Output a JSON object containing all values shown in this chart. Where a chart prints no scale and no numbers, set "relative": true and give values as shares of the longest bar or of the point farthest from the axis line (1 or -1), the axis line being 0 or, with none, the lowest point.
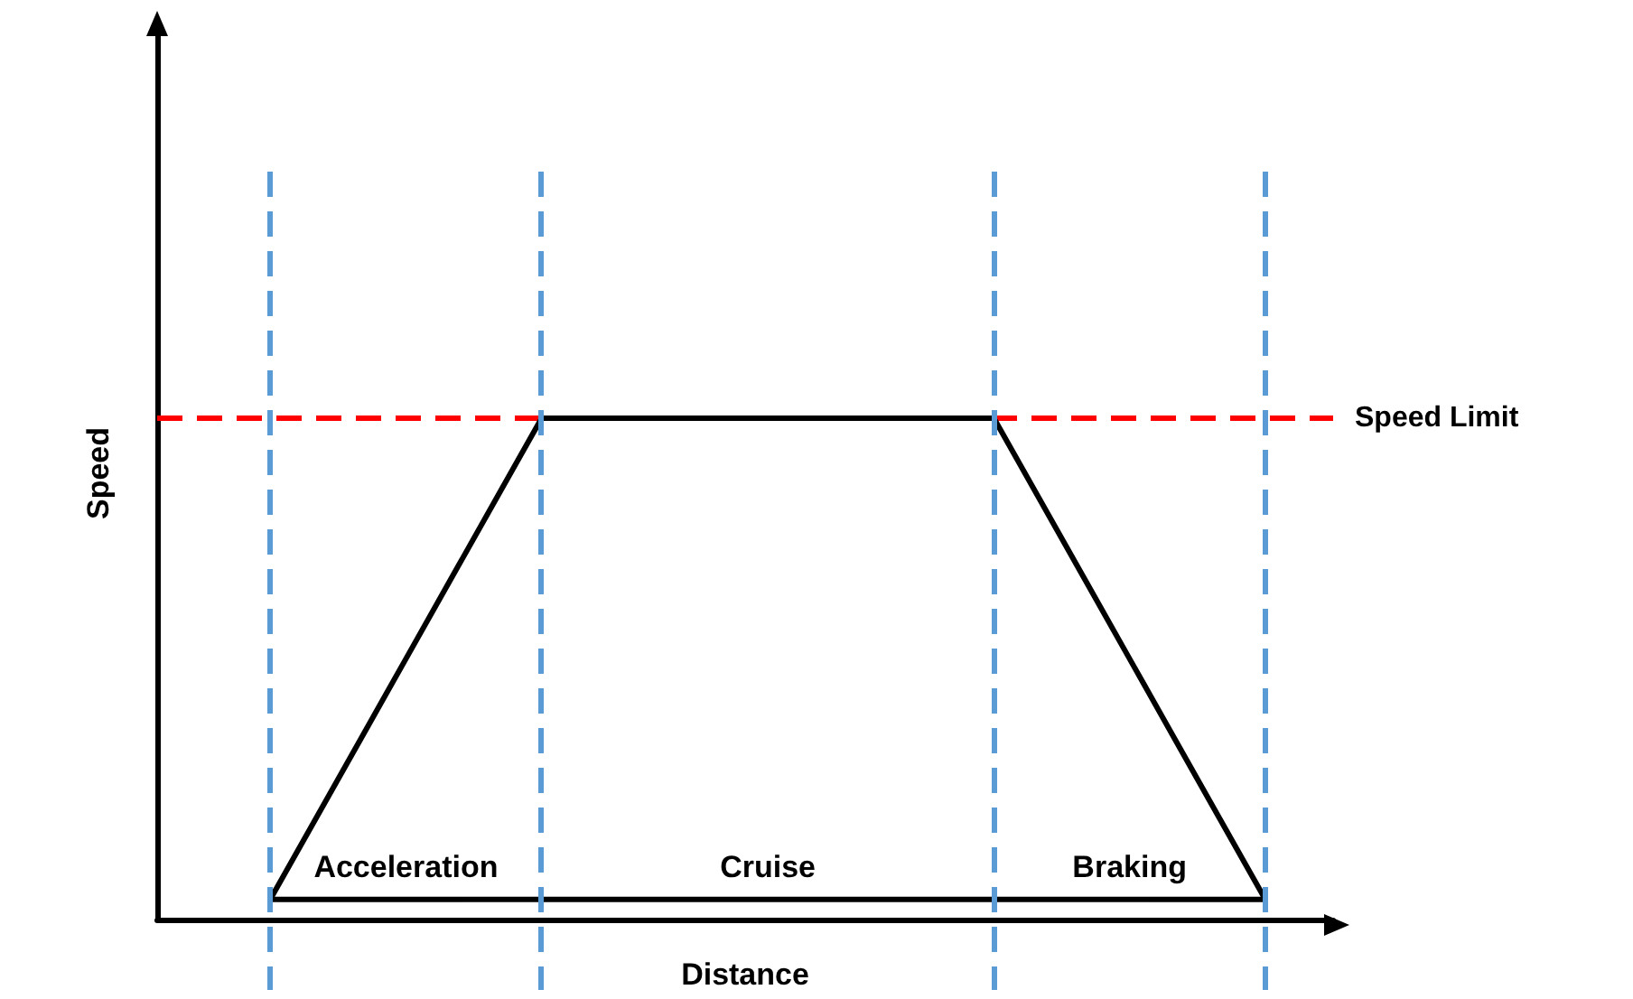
{
  "chart_data": {
    "type": "line",
    "xlabel": "Distance",
    "ylabel": "Speed",
    "relative": true,
    "marker": "none",
    "line_style": "solid",
    "categories": [
      null,
      null,
      null,
      null,
      null,
      null,
      null,
      null,
      null,
      null,
      null,
      null,
      null,
      null,
      null,
      null,
      null,
      null,
      null,
      null,
      null,
      null,
      null,
      null,
      null,
      null
    ],
    "series": [
      {
        "color": "#000000",
        "values": [
          null,
          null,
          0.04,
          0.2,
          0.36,
          0.52,
          0.68,
          0.84,
          1,
          1,
          1,
          1,
          1,
          1,
          1,
          1,
          1,
          1,
          1,
          0.84,
          0.68,
          0.52,
          0.36,
          0.2,
          0.04,
          null
        ]
      },
      {
        "color": "#000000",
        "values": [
          null,
          null,
          0.04,
          0.04,
          0.04,
          0.04,
          0.04,
          0.04,
          0.04,
          0.04,
          0.04,
          0.04,
          0.04,
          0.04,
          0.04,
          0.04,
          0.04,
          0.04,
          0.04,
          0.04,
          0.04,
          0.04,
          0.04,
          0.04,
          0.04,
          null
        ]
      }
    ],
    "ref_lines": [
      {
        "axis": "y",
        "value": 1,
        "label": "Speed Limit",
        "color": "#ff0000",
        "line_style": "dashed"
      }
    ],
    "annotations": [
      "Acceleration",
      "Cruise",
      "Braking"
    ]
  }
}
